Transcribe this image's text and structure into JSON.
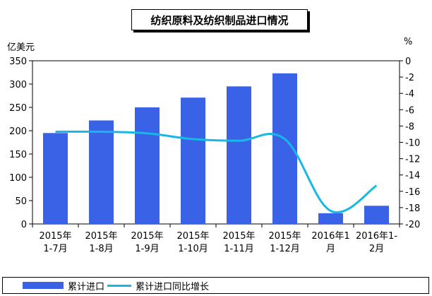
{
  "title": "纺织原料及纺织制品进口情况",
  "left_unit": "亿美元",
  "right_unit": "%",
  "chart_data": {
    "type": "bar+line",
    "categories": [
      [
        "2015年",
        "1-7月"
      ],
      [
        "2015年",
        "1-8月"
      ],
      [
        "2015年",
        "1-9月"
      ],
      [
        "2015年",
        "1-10月"
      ],
      [
        "2015年",
        "1-11月"
      ],
      [
        "2015年",
        "1-12月"
      ],
      [
        "2016年1",
        "月"
      ],
      [
        "2016年1-",
        "2月"
      ]
    ],
    "series": [
      {
        "name": "累计进口",
        "type": "bar",
        "axis": "left",
        "color": "#3a62e6",
        "values": [
          195,
          222,
          250,
          271,
          295,
          323,
          23,
          39
        ]
      },
      {
        "name": "累计进口同比增长",
        "type": "line",
        "axis": "right",
        "color": "#17b8e8",
        "values": [
          -8.7,
          -8.7,
          -8.9,
          -9.6,
          -9.8,
          -9.6,
          -18.4,
          -15.3
        ]
      }
    ],
    "y_left": {
      "min": 0,
      "max": 350,
      "ticks": [
        0,
        50,
        100,
        150,
        200,
        250,
        300,
        350
      ]
    },
    "y_right": {
      "min": -20,
      "max": 0,
      "ticks": [
        0,
        -2,
        -4,
        -6,
        -8,
        -10,
        -12,
        -14,
        -16,
        -18,
        -20
      ]
    },
    "grid": false,
    "legend": "bottom"
  }
}
